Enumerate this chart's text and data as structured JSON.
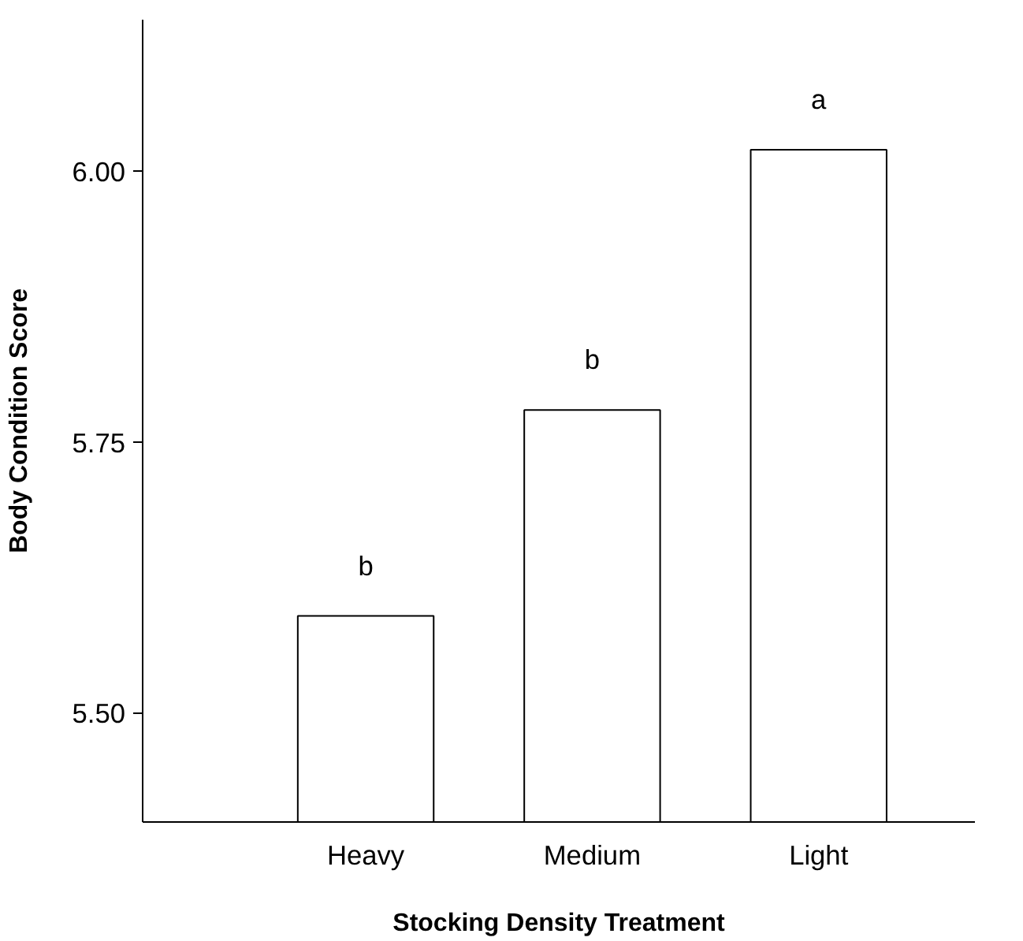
{
  "chart_data": {
    "type": "bar",
    "xlabel": "Stocking Density Treatment",
    "ylabel": "Body Condition Score",
    "categories": [
      "Heavy",
      "Medium",
      "Light"
    ],
    "values": [
      5.59,
      5.78,
      6.02
    ],
    "color": "#ffffff",
    "ylim": [
      5.4,
      6.14
    ],
    "yticks": [
      {
        "value": 5.5,
        "label": "5.50"
      },
      {
        "value": 5.75,
        "label": "5.75"
      },
      {
        "value": 6.0,
        "label": "6.00"
      }
    ],
    "grid": false,
    "annotations": [
      "b",
      "b",
      "a"
    ]
  }
}
